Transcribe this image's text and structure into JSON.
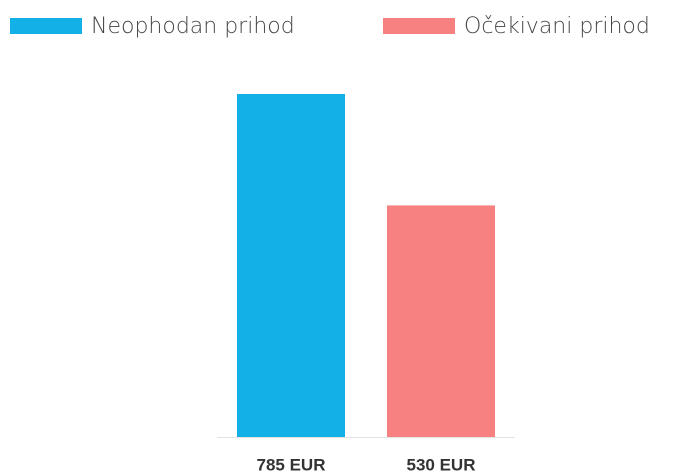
{
  "chart_data": {
    "type": "bar",
    "series": [
      {
        "name": "Neophodan prihod",
        "color": "#12b0e6",
        "values": [
          785
        ],
        "value_labels": [
          "785 EUR"
        ]
      },
      {
        "name": "Očekivani prihod",
        "color": "#f78181",
        "values": [
          530
        ],
        "value_labels": [
          "530 EUR"
        ]
      }
    ]
  }
}
